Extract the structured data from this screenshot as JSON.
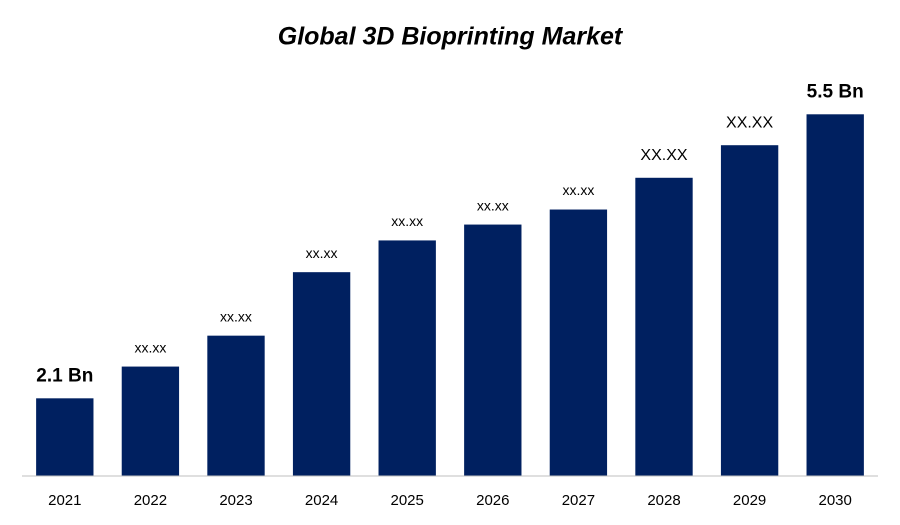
{
  "chart_data": {
    "type": "bar",
    "title": "Global 3D Bioprinting Market",
    "categories": [
      "2021",
      "2022",
      "2023",
      "2024",
      "2025",
      "2026",
      "2027",
      "2028",
      "2029",
      "2030"
    ],
    "values": [
      2.1,
      2.48,
      2.85,
      3.61,
      3.99,
      4.18,
      4.36,
      4.74,
      5.13,
      5.5
    ],
    "value_labels": [
      "2.1 Bn",
      "xx.xx",
      "xx.xx",
      "xx.xx",
      "xx.xx",
      "xx.xx",
      "xx.xx",
      "XX.XX",
      "XX.XX",
      "5.5 Bn"
    ],
    "color": "#002060",
    "ylim": [
      1.17,
      6.15
    ]
  }
}
